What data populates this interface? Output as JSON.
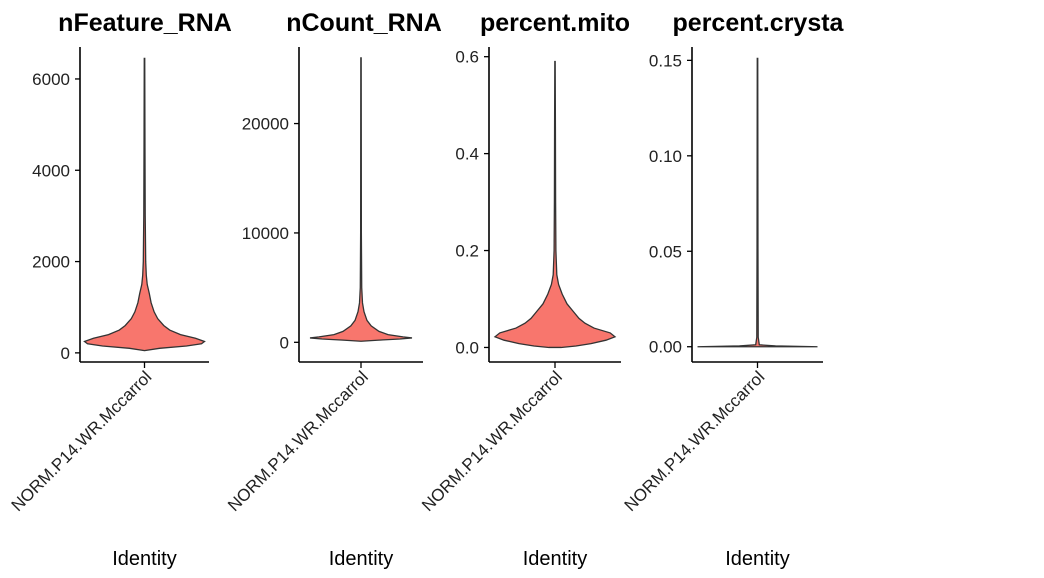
{
  "chart_data": [
    {
      "type": "violin",
      "title": "nFeature_RNA",
      "xlabel": "Identity",
      "categories": [
        "NORM.P14.WR.Mccarrol"
      ],
      "ylim": [
        -200,
        6700
      ],
      "yticks": [
        0,
        2000,
        4000,
        6000
      ],
      "ytick_labels": [
        "0",
        "2000",
        "4000",
        "6000"
      ],
      "min": 50,
      "max": 6450,
      "density": [
        {
          "y": 50,
          "w": 0.0
        },
        {
          "y": 100,
          "w": 0.25
        },
        {
          "y": 150,
          "w": 0.7
        },
        {
          "y": 200,
          "w": 0.95
        },
        {
          "y": 250,
          "w": 1.0
        },
        {
          "y": 320,
          "w": 0.85
        },
        {
          "y": 400,
          "w": 0.6
        },
        {
          "y": 500,
          "w": 0.42
        },
        {
          "y": 600,
          "w": 0.32
        },
        {
          "y": 750,
          "w": 0.22
        },
        {
          "y": 900,
          "w": 0.16
        },
        {
          "y": 1100,
          "w": 0.11
        },
        {
          "y": 1300,
          "w": 0.08
        },
        {
          "y": 1500,
          "w": 0.045
        },
        {
          "y": 1700,
          "w": 0.03
        },
        {
          "y": 2000,
          "w": 0.02
        },
        {
          "y": 3000,
          "w": 0.012
        },
        {
          "y": 4500,
          "w": 0.008
        },
        {
          "y": 6450,
          "w": 0.004
        }
      ]
    },
    {
      "type": "violin",
      "title": "nCount_RNA",
      "xlabel": "Identity",
      "categories": [
        "NORM.P14.WR.Mccarrol"
      ],
      "ylim": [
        -1800,
        27000
      ],
      "yticks": [
        0,
        10000,
        20000
      ],
      "ytick_labels": [
        "0",
        "10000",
        "20000"
      ],
      "min": 100,
      "max": 26000,
      "density": [
        {
          "y": 100,
          "w": 0.0
        },
        {
          "y": 200,
          "w": 0.3
        },
        {
          "y": 300,
          "w": 0.65
        },
        {
          "y": 400,
          "w": 0.85
        },
        {
          "y": 500,
          "w": 0.7
        },
        {
          "y": 700,
          "w": 0.45
        },
        {
          "y": 1000,
          "w": 0.3
        },
        {
          "y": 1500,
          "w": 0.17
        },
        {
          "y": 2000,
          "w": 0.1
        },
        {
          "y": 2800,
          "w": 0.05
        },
        {
          "y": 3600,
          "w": 0.025
        },
        {
          "y": 5000,
          "w": 0.012
        },
        {
          "y": 10000,
          "w": 0.006
        },
        {
          "y": 26000,
          "w": 0.003
        }
      ]
    },
    {
      "type": "violin",
      "title": "percent.mito",
      "xlabel": "Identity",
      "categories": [
        "NORM.P14.WR.Mccarrol"
      ],
      "ylim": [
        -0.03,
        0.62
      ],
      "yticks": [
        0.0,
        0.2,
        0.4,
        0.6
      ],
      "ytick_labels": [
        "0.0",
        "0.2",
        "0.4",
        "0.6"
      ],
      "min": 0.0,
      "max": 0.59,
      "density": [
        {
          "y": 0.0,
          "w": 0.1
        },
        {
          "y": 0.003,
          "w": 0.35
        },
        {
          "y": 0.008,
          "w": 0.6
        },
        {
          "y": 0.015,
          "w": 0.85
        },
        {
          "y": 0.022,
          "w": 1.0
        },
        {
          "y": 0.03,
          "w": 0.92
        },
        {
          "y": 0.04,
          "w": 0.65
        },
        {
          "y": 0.05,
          "w": 0.5
        },
        {
          "y": 0.06,
          "w": 0.4
        },
        {
          "y": 0.075,
          "w": 0.3
        },
        {
          "y": 0.09,
          "w": 0.2
        },
        {
          "y": 0.11,
          "w": 0.12
        },
        {
          "y": 0.13,
          "w": 0.06
        },
        {
          "y": 0.15,
          "w": 0.03
        },
        {
          "y": 0.2,
          "w": 0.015
        },
        {
          "y": 0.3,
          "w": 0.01
        },
        {
          "y": 0.45,
          "w": 0.007
        },
        {
          "y": 0.59,
          "w": 0.003
        }
      ]
    },
    {
      "type": "violin",
      "title": "percent.crysta",
      "xlabel": "Identity",
      "categories": [
        "NORM.P14.WR.Mccarrol"
      ],
      "ylim": [
        -0.008,
        0.157
      ],
      "yticks": [
        0.0,
        0.05,
        0.1,
        0.15
      ],
      "ytick_labels": [
        "0.00",
        "0.05",
        "0.10",
        "0.15"
      ],
      "min": 0.0,
      "max": 0.151,
      "density": [
        {
          "y": 0.0,
          "w": 1.0
        },
        {
          "y": 0.0004,
          "w": 0.3
        },
        {
          "y": 0.001,
          "w": 0.03
        },
        {
          "y": 0.005,
          "w": 0.012
        },
        {
          "y": 0.05,
          "w": 0.008
        },
        {
          "y": 0.151,
          "w": 0.004
        }
      ]
    }
  ],
  "colors": {
    "fill": "#F8766D",
    "outline": "#333333",
    "axis": "#000000"
  }
}
